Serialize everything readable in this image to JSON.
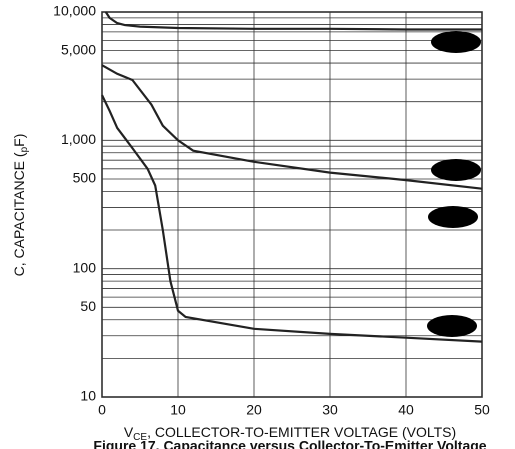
{
  "chart_data": {
    "type": "line",
    "title": "Figure 17. Capacitance versus Collector-To-Emitter Voltage",
    "xlabel_parts": [
      "V",
      "CE",
      ", COLLECTOR-TO-EMITTER VOLTAGE (VOLTS)"
    ],
    "ylabel_parts": [
      "C, CAPACITANCE  (",
      "p",
      "F)"
    ],
    "xlim": [
      0,
      50
    ],
    "xticks": [
      0,
      10,
      20,
      30,
      40,
      50
    ],
    "ylim": [
      10,
      10000
    ],
    "log_y": true,
    "yticks": [
      {
        "value": 10,
        "label": "10"
      },
      {
        "value": 50,
        "label": "50"
      },
      {
        "value": 100,
        "label": "100"
      },
      {
        "value": 500,
        "label": "500"
      },
      {
        "value": 1000,
        "label": "1,000"
      },
      {
        "value": 5000,
        "label": "5,000"
      },
      {
        "value": 10000,
        "label": "10,000"
      }
    ],
    "y_minor_ticks": [
      20,
      30,
      40,
      60,
      70,
      80,
      90,
      200,
      300,
      400,
      600,
      700,
      800,
      900,
      2000,
      3000,
      4000,
      6000,
      7000,
      8000,
      9000
    ],
    "grid": true,
    "series": [
      {
        "color": "#222222",
        "x": [
          0.5,
          1,
          2,
          3,
          5,
          10,
          20,
          30,
          40,
          50
        ],
        "values": [
          10000,
          9000,
          8200,
          7900,
          7700,
          7500,
          7400,
          7400,
          7300,
          7300
        ]
      },
      {
        "color": "#222222",
        "x": [
          0,
          2,
          4,
          6.5,
          8,
          10,
          12,
          20,
          30,
          40,
          50
        ],
        "values": [
          3850,
          3300,
          2950,
          1900,
          1300,
          1000,
          830,
          680,
          560,
          490,
          420
        ]
      },
      {
        "color": "#222222",
        "x": [
          0,
          1,
          2,
          4,
          6,
          7,
          8,
          9,
          10,
          11,
          20,
          30,
          40,
          50
        ],
        "values": [
          2250,
          1700,
          1250,
          870,
          600,
          445,
          200,
          80,
          47,
          42,
          34,
          31,
          29,
          27
        ]
      }
    ]
  }
}
